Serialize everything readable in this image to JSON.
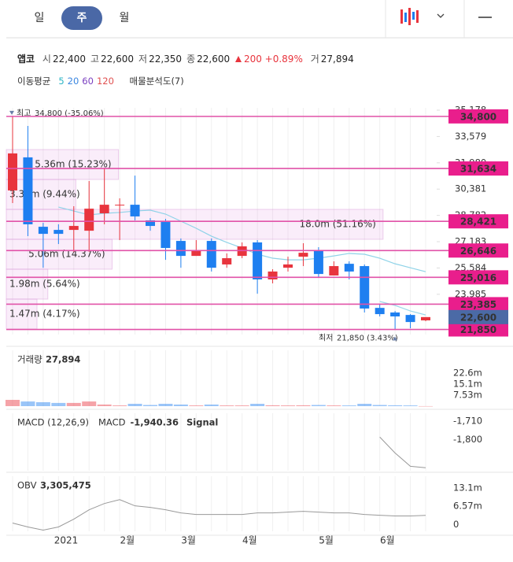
{
  "header": {
    "tabs": [
      "일",
      "주",
      "월"
    ],
    "selected": 1
  },
  "info": {
    "name": "앱코",
    "items": [
      {
        "label": "시",
        "value": "22,400"
      },
      {
        "label": "고",
        "value": "22,600"
      },
      {
        "label": "저",
        "value": "22,350"
      },
      {
        "label": "종",
        "value": "22,600"
      }
    ],
    "change": "200",
    "change_pct": "+0.89%",
    "volume_label": "거",
    "volume": "27,894"
  },
  "ma_legend": {
    "title": "이동평균",
    "periods": [
      {
        "label": "5",
        "color": "#2bb5c4"
      },
      {
        "label": "20",
        "color": "#3a86e0"
      },
      {
        "label": "60",
        "color": "#7a3fc0"
      },
      {
        "label": "120",
        "color": "#e05050"
      }
    ],
    "profile_title": "매물분석도(7)"
  },
  "chart_data": [
    {
      "type": "candlestick",
      "name": "price",
      "categories": [
        null,
        null,
        null,
        null,
        "2021",
        null,
        null,
        null,
        "2월",
        null,
        null,
        null,
        "3월",
        null,
        null,
        null,
        "4월",
        null,
        null,
        null,
        null,
        "5월",
        null,
        null,
        null,
        "6월",
        null,
        null
      ],
      "open": [
        30300,
        32310,
        28090,
        27900,
        27900,
        27850,
        28910,
        29390,
        29430,
        28480,
        28380,
        27230,
        26320,
        27230,
        25800,
        26320,
        27140,
        24890,
        25600,
        26270,
        26660,
        25130,
        25840,
        25700,
        23160,
        22880,
        22730,
        22400
      ],
      "high": [
        34800,
        34220,
        28330,
        28240,
        29340,
        30870,
        31680,
        29820,
        31200,
        28620,
        28570,
        27380,
        27280,
        27380,
        26470,
        27140,
        27280,
        25510,
        26270,
        27090,
        26850,
        25990,
        25990,
        25800,
        23400,
        22970,
        22780,
        22600
      ],
      "low": [
        29530,
        27520,
        25600,
        27040,
        26560,
        26560,
        28240,
        27280,
        28480,
        27850,
        26080,
        25600,
        26320,
        25370,
        25600,
        26180,
        24020,
        24650,
        25370,
        25700,
        25030,
        25130,
        24890,
        22880,
        22640,
        21850,
        21920,
        22350
      ],
      "close": [
        32550,
        28240,
        27660,
        27660,
        28140,
        29190,
        29430,
        29430,
        28720,
        28140,
        26800,
        26320,
        26660,
        25600,
        26180,
        26900,
        24890,
        25370,
        25800,
        26510,
        25220,
        25700,
        25370,
        23120,
        22780,
        22640,
        22300,
        22600
      ],
      "up_color": "#e8343d",
      "down_color": "#1e7ff0",
      "ylim": [
        21540,
        35320
      ],
      "yticks": [
        {
          "value": 35178,
          "label": "35,178"
        },
        {
          "value": 33579,
          "label": "33,579"
        },
        {
          "value": 31980,
          "label": "31,980"
        },
        {
          "value": 30381,
          "label": "30,381"
        },
        {
          "value": 28782,
          "label": "28,782"
        },
        {
          "value": 27183,
          "label": "27,183"
        },
        {
          "value": 25584,
          "label": "25,584"
        },
        {
          "value": 23985,
          "label": "23,985"
        }
      ],
      "series": [
        {
          "name": "20",
          "color": "#8fd3e8",
          "values": [
            null,
            null,
            null,
            29290,
            29050,
            28810,
            28910,
            28960,
            29050,
            29100,
            28860,
            28430,
            28000,
            27520,
            27140,
            26800,
            26420,
            26180,
            26080,
            26080,
            26180,
            26320,
            26470,
            26420,
            26180,
            25840,
            25600,
            25360
          ]
        },
        {
          "name": "5",
          "color": "#9ad8ea",
          "values": [
            null,
            null,
            null,
            null,
            null,
            null,
            null,
            null,
            null,
            null,
            null,
            null,
            null,
            null,
            null,
            null,
            null,
            null,
            null,
            null,
            null,
            null,
            null,
            null,
            23550,
            23310,
            22970,
            22730
          ]
        }
      ],
      "levels": [
        {
          "value": 34800,
          "label": "34,800"
        },
        {
          "value": 31634,
          "label": "31,634"
        },
        {
          "value": 28421,
          "label": "28,421"
        },
        {
          "value": 26646,
          "label": "26,646"
        },
        {
          "value": 25016,
          "label": "25,016"
        },
        {
          "value": 23385,
          "label": "23,385"
        },
        {
          "value": 21850,
          "label": "21,850"
        }
      ],
      "current": {
        "value": 22600,
        "label": "22,600"
      },
      "profile": {
        "values": [
          15.23,
          9.44,
          51.16,
          14.37,
          5.64,
          4.17
        ],
        "value_labels": [
          "5.36m (15.23%)",
          "3.32m (9.44%)",
          "18.0m (51.16%)",
          "5.06m (14.37%)",
          "1.98m (5.64%)",
          "1.47m (4.17%)"
        ]
      },
      "high_note": {
        "label": "최고",
        "text": "34,800 (-35.06%)"
      },
      "low_note": {
        "label": "최저",
        "text": "21,850 (3.43%)"
      }
    },
    {
      "type": "bar",
      "name": "volume",
      "title": "거래량",
      "last": "27,894",
      "values": [
        4300000,
        3200000,
        2700000,
        2200000,
        2200000,
        3200000,
        1100000,
        500000,
        1600000,
        800000,
        1600000,
        1100000,
        500000,
        1100000,
        500000,
        500000,
        1600000,
        600000,
        500000,
        600000,
        800000,
        500000,
        500000,
        1600000,
        800000,
        600000,
        500000,
        27894
      ],
      "ylim": [
        0,
        38200000
      ],
      "yticks": [
        {
          "value": 22600000,
          "label": "22.6m"
        },
        {
          "value": 15100000,
          "label": "15.1m"
        },
        {
          "value": 7530000,
          "label": "7.53m"
        }
      ]
    },
    {
      "type": "line",
      "name": "macd",
      "title": "MACD (12,26,9)",
      "series_label": "MACD",
      "last": "-1,940.36",
      "signal_label": "Signal",
      "signal_color": "#f0962e",
      "color": "#999",
      "values": [
        null,
        null,
        null,
        null,
        null,
        null,
        null,
        null,
        null,
        null,
        null,
        null,
        null,
        null,
        null,
        null,
        null,
        null,
        null,
        null,
        null,
        null,
        null,
        null,
        -1788,
        -1867,
        -1933,
        -1940.36
      ],
      "ylim": [
        -1955,
        -1670
      ],
      "yticks": [
        {
          "value": -1710,
          "label": "-1,710"
        },
        {
          "value": -1800,
          "label": "-1,800"
        }
      ]
    },
    {
      "type": "line",
      "name": "obv",
      "title": "OBV",
      "last": "3,305,475",
      "color": "#999",
      "values": [
        560000,
        -840000,
        -1960000,
        -840000,
        1960000,
        5310000,
        7550000,
        8950000,
        6710000,
        6150000,
        5310000,
        4190000,
        3630000,
        3630000,
        3630000,
        3630000,
        4190000,
        4190000,
        4470000,
        4750000,
        4470000,
        4190000,
        4190000,
        3630000,
        3350000,
        3080000,
        3080000,
        3305475
      ],
      "ylim": [
        -2400000,
        17330000
      ],
      "yticks": [
        {
          "value": 13100000,
          "label": "13.1m"
        },
        {
          "value": 6570000,
          "label": "6.57m"
        },
        0
      ]
    }
  ]
}
